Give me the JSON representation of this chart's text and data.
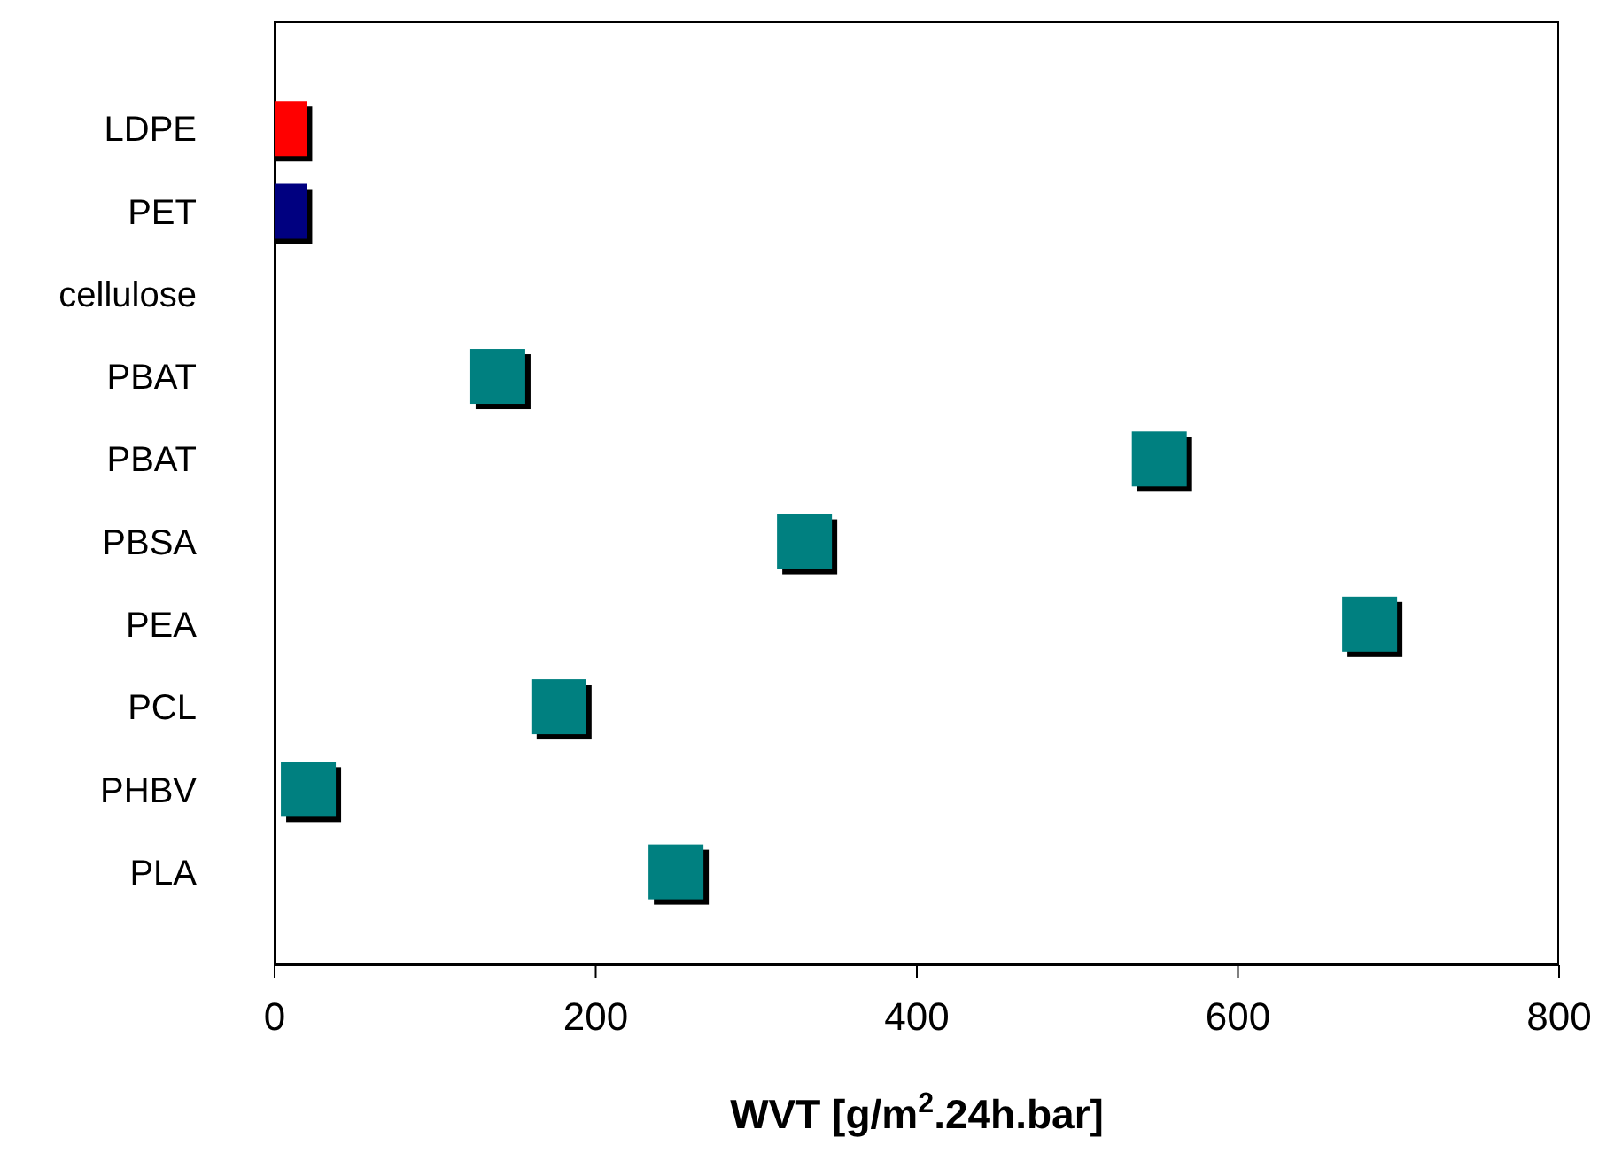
{
  "chart_data": {
    "type": "scatter",
    "orientation": "horizontal",
    "xlabel": "WVT [g/m$^{2}$.24h.bar]",
    "categories": [
      "LDPE",
      "PET",
      "cellulose",
      "PBAT",
      "PBAT",
      "PBSA",
      "PEA",
      "PCL",
      "PHBV",
      "PLA"
    ],
    "values": [
      3,
      3,
      null,
      139,
      551,
      330,
      682,
      177,
      21,
      250
    ],
    "colors": [
      "#ff0000",
      "#000080",
      "#008080",
      "#008080",
      "#008080",
      "#008080",
      "#008080",
      "#008080",
      "#008080",
      "#008080"
    ],
    "xlim": [
      0,
      800
    ],
    "xticks": [
      0,
      200,
      400,
      600,
      800
    ],
    "marker": "square",
    "grid": false
  }
}
